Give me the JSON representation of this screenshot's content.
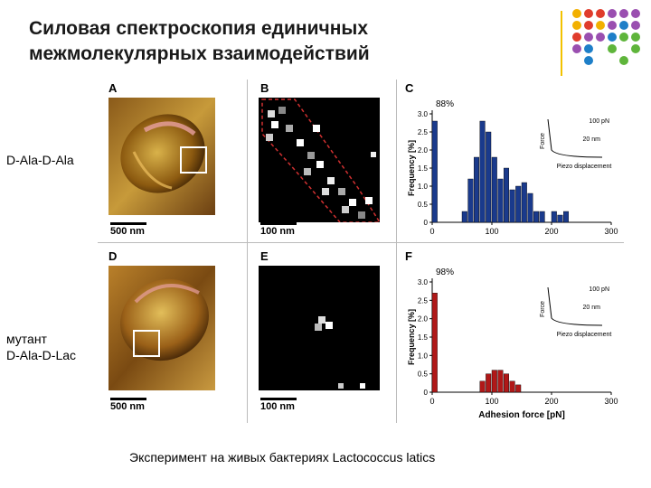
{
  "slide": {
    "title_line1": "Силовая спектроскопия единичных",
    "title_line2": "межмолекулярных взаимодействий",
    "caption": "Эксперимент на живых бактериях Lactococcus latics"
  },
  "panels": {
    "A": "A",
    "B": "B",
    "C": "C",
    "D": "D",
    "E": "E",
    "F": "F"
  },
  "side_labels": {
    "top": "D-Ala-D-Ala",
    "bottom_line1": "мутант",
    "bottom_line2": "D-Ala-D-Lac"
  },
  "scales": {
    "a": "500 nm",
    "b": "100 nm",
    "d": "500 nm",
    "e": "100 nm"
  },
  "colors": {
    "accent_line": "#f2c200",
    "histogram_top": "#1a3a8c",
    "histogram_bottom": "#b01818"
  },
  "chart_data": [
    {
      "type": "bar",
      "panel": "C",
      "peak_label": "88%",
      "ylabel": "Frequency [%]",
      "xlim": [
        0,
        300
      ],
      "ylim": [
        0,
        3.0
      ],
      "x_ticks": [
        "0",
        "100",
        "200",
        "300"
      ],
      "y_ticks": [
        "0",
        "0.5",
        "1.0",
        "1.5",
        "2.0",
        "2.5",
        "3.0"
      ],
      "x": [
        0,
        50,
        60,
        70,
        80,
        90,
        100,
        110,
        120,
        130,
        140,
        150,
        160,
        170,
        180,
        200,
        210,
        220
      ],
      "values": [
        2.8,
        0.3,
        1.2,
        1.8,
        2.8,
        2.5,
        1.8,
        1.2,
        1.5,
        0.9,
        1.0,
        1.1,
        0.8,
        0.3,
        0.3,
        0.3,
        0.2,
        0.3
      ],
      "inset": {
        "scale_y": "100 pN",
        "scale_x": "20 nm",
        "ylabel": "Force",
        "xlabel": "Piezo displacement"
      }
    },
    {
      "type": "bar",
      "panel": "F",
      "peak_label": "98%",
      "ylabel": "Frequency [%]",
      "xlabel": "Adhesion force [pN]",
      "xlim": [
        0,
        300
      ],
      "ylim": [
        0,
        3.0
      ],
      "x_ticks": [
        "0",
        "100",
        "200",
        "300"
      ],
      "y_ticks": [
        "0",
        "0.5",
        "1.0",
        "1.5",
        "2.0",
        "2.5",
        "3.0"
      ],
      "x": [
        0,
        80,
        90,
        100,
        110,
        120,
        130,
        140
      ],
      "values": [
        2.7,
        0.3,
        0.5,
        0.6,
        0.6,
        0.5,
        0.3,
        0.2
      ],
      "inset": {
        "scale_y": "100 pN",
        "scale_x": "20 nm",
        "ylabel": "Force",
        "xlabel": "Piezo displacement"
      }
    }
  ]
}
